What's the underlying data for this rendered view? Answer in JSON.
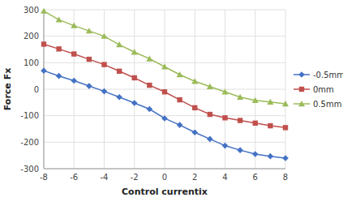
{
  "chart_data": {
    "type": "line",
    "xlabel": "Control currentix",
    "ylabel": "Force Fx",
    "x": [
      -8,
      -7,
      -6,
      -5,
      -4,
      -3,
      -2,
      -1,
      0,
      1,
      2,
      3,
      4,
      5,
      6,
      7,
      8
    ],
    "xlim": [
      -8,
      8
    ],
    "ylim": [
      -300,
      300
    ],
    "xticks": [
      -8,
      -6,
      -4,
      -2,
      0,
      2,
      4,
      6,
      8
    ],
    "yticks": [
      -300,
      -200,
      -100,
      0,
      100,
      200,
      300
    ],
    "grid": true,
    "legend": "right",
    "series": [
      {
        "name": "-0.5mm",
        "color": "#4472C4",
        "marker": "diamond",
        "values": [
          70,
          50,
          32,
          12,
          -8,
          -30,
          -52,
          -75,
          -110,
          -135,
          -163,
          -188,
          -213,
          -230,
          -245,
          -253,
          -260
        ]
      },
      {
        "name": "0mm",
        "color": "#C0504D",
        "marker": "square",
        "values": [
          170,
          152,
          133,
          113,
          93,
          68,
          43,
          15,
          -10,
          -40,
          -70,
          -95,
          -108,
          -118,
          -128,
          -138,
          -145
        ]
      },
      {
        "name": "0.5mm",
        "color": "#9BBB59",
        "marker": "triangle",
        "values": [
          295,
          262,
          240,
          220,
          200,
          168,
          140,
          115,
          85,
          55,
          30,
          10,
          -10,
          -30,
          -42,
          -48,
          -55
        ]
      }
    ]
  }
}
